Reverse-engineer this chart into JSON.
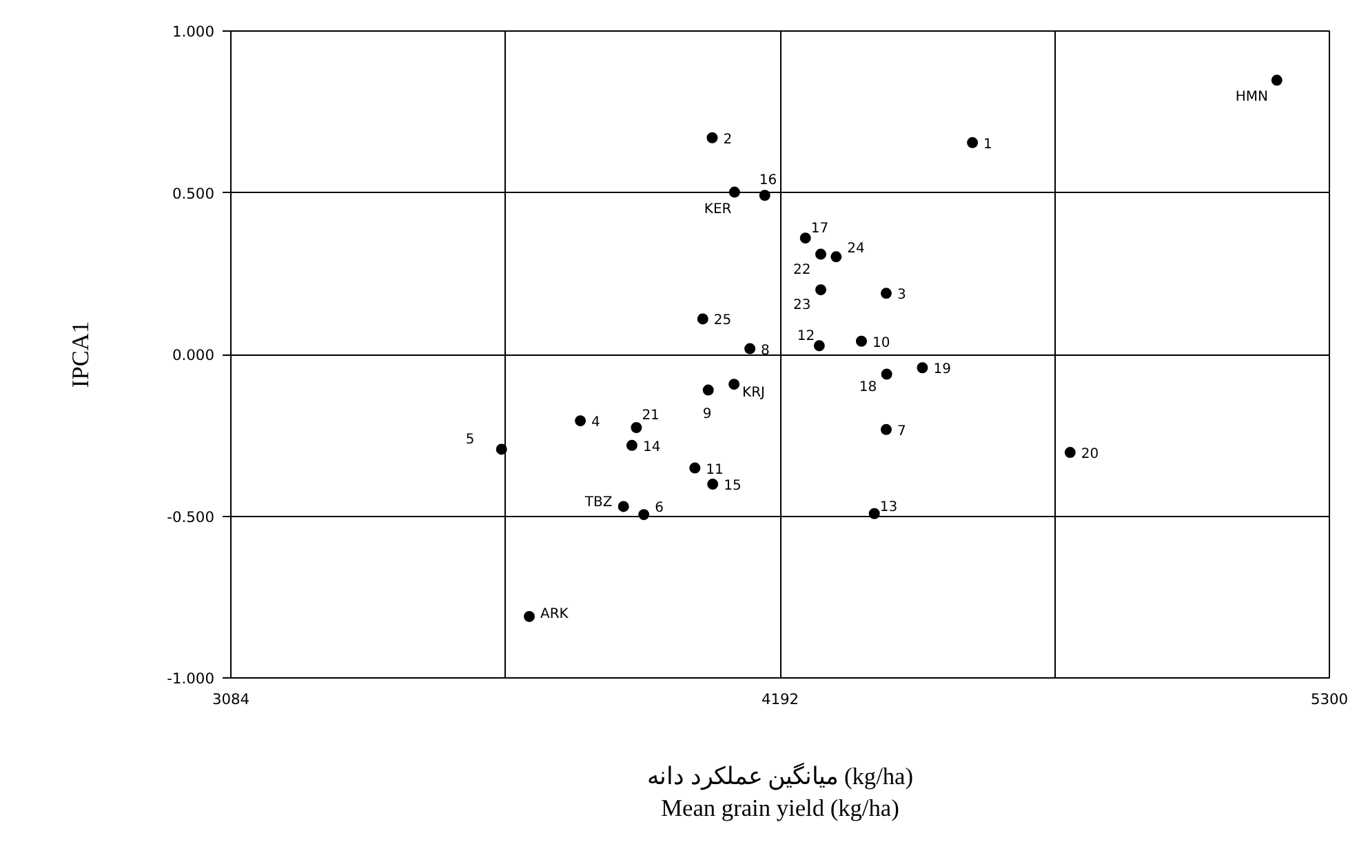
{
  "chart_data": {
    "type": "scatter",
    "xlabel": "میانگین عملکرد دانه (kg/ha)\nMean grain yield (kg/ha)",
    "ylabel": "IPCA1",
    "x": [
      4580,
      4055,
      4406,
      3789,
      3630,
      3917,
      4406,
      4131,
      4047,
      4356,
      4020,
      4271,
      4382,
      3893,
      4056,
      4161,
      4243,
      4407,
      4479,
      4777,
      3902,
      4274,
      4274,
      4305,
      4036,
      5194,
      4100,
      4099,
      3876,
      3686
    ],
    "series": [
      {
        "color": "#000000",
        "values": [
          0.655,
          0.67,
          0.189,
          -0.205,
          -0.293,
          -0.495,
          -0.232,
          0.018,
          -0.11,
          0.041,
          -0.351,
          0.027,
          -0.492,
          -0.281,
          -0.401,
          0.492,
          0.36,
          -0.061,
          -0.041,
          -0.303,
          -0.226,
          0.31,
          0.2,
          0.302,
          0.11,
          0.848,
          0.502,
          -0.092,
          -0.47,
          -0.81
        ]
      }
    ],
    "marker": "circle",
    "xlim": [
      3084,
      5300
    ],
    "ylim": [
      -1.0,
      1.0
    ],
    "xticks": [
      3084,
      {
        "value": 3638,
        "label": null
      },
      4192,
      {
        "value": 4746,
        "label": null
      },
      5300
    ],
    "yticks": [
      {
        "value": -1.0,
        "label": "-1.000"
      },
      {
        "value": -0.5,
        "label": "-0.500"
      },
      {
        "value": 0.0,
        "label": "0.000"
      },
      {
        "value": 0.5,
        "label": "0.500"
      },
      {
        "value": 1.0,
        "label": "1.000"
      }
    ],
    "grid": true,
    "annotations": [
      {
        "text": "1",
        "x": 4580,
        "y": 0.655
      },
      {
        "text": "2",
        "x": 4055,
        "y": 0.67
      },
      {
        "text": "3",
        "x": 4406,
        "y": 0.189
      },
      {
        "text": "4",
        "x": 3789,
        "y": -0.205
      },
      {
        "text": "5",
        "x": 3630,
        "y": -0.293
      },
      {
        "text": "6",
        "x": 3917,
        "y": -0.495
      },
      {
        "text": "7",
        "x": 4406,
        "y": -0.232
      },
      {
        "text": "8",
        "x": 4131,
        "y": 0.018
      },
      {
        "text": "9",
        "x": 4047,
        "y": -0.11
      },
      {
        "text": "10",
        "x": 4356,
        "y": 0.041
      },
      {
        "text": "11",
        "x": 4020,
        "y": -0.351
      },
      {
        "text": "12",
        "x": 4271,
        "y": 0.027
      },
      {
        "text": "13",
        "x": 4382,
        "y": -0.492
      },
      {
        "text": "14",
        "x": 3893,
        "y": -0.281
      },
      {
        "text": "15",
        "x": 4056,
        "y": -0.401
      },
      {
        "text": "16",
        "x": 4161,
        "y": 0.492
      },
      {
        "text": "17",
        "x": 4243,
        "y": 0.36
      },
      {
        "text": "18",
        "x": 4407,
        "y": -0.061
      },
      {
        "text": "19",
        "x": 4479,
        "y": -0.041
      },
      {
        "text": "20",
        "x": 4777,
        "y": -0.303
      },
      {
        "text": "21",
        "x": 3902,
        "y": -0.226
      },
      {
        "text": "22",
        "x": 4274,
        "y": 0.31
      },
      {
        "text": "23",
        "x": 4274,
        "y": 0.2
      },
      {
        "text": "24",
        "x": 4305,
        "y": 0.302
      },
      {
        "text": "25",
        "x": 4036,
        "y": 0.11
      },
      {
        "text": "HMN",
        "x": 5194,
        "y": 0.848
      },
      {
        "text": "KER",
        "x": 4100,
        "y": 0.502
      },
      {
        "text": "KRJ",
        "x": 4099,
        "y": -0.092
      },
      {
        "text": "TBZ",
        "x": 3876,
        "y": -0.47
      },
      {
        "text": "ARK",
        "x": 3686,
        "y": -0.81
      }
    ]
  }
}
